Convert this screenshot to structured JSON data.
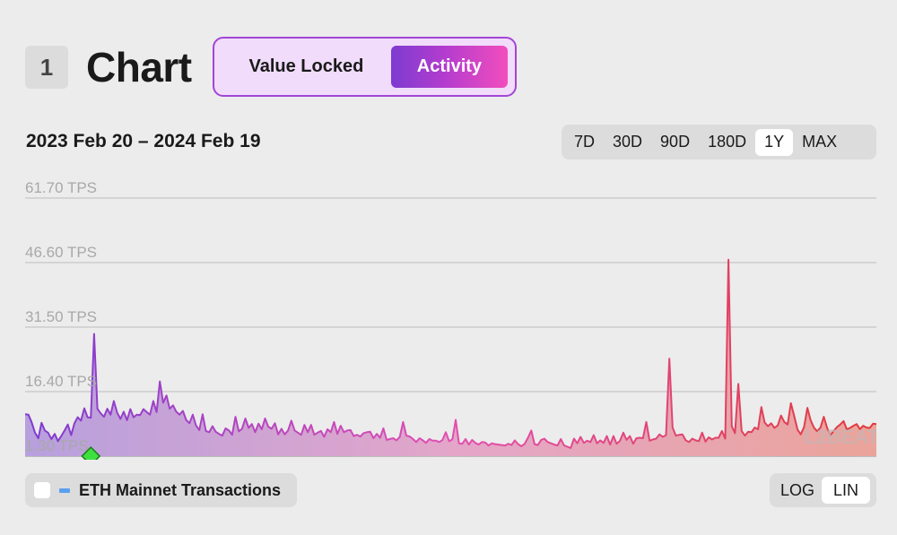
{
  "header": {
    "section_number": "1",
    "title": "Chart",
    "tabs": [
      {
        "label": "Value Locked",
        "active": false
      },
      {
        "label": "Activity",
        "active": true
      }
    ]
  },
  "date_range": "2023 Feb 20 – 2024 Feb 19",
  "range_buttons": [
    {
      "label": "7D",
      "selected": false
    },
    {
      "label": "30D",
      "selected": false
    },
    {
      "label": "90D",
      "selected": false
    },
    {
      "label": "180D",
      "selected": false
    },
    {
      "label": "1Y",
      "selected": true
    },
    {
      "label": "MAX",
      "selected": false
    }
  ],
  "legend": {
    "label": "ETH Mainnet Transactions",
    "checked": false,
    "swatch_color": "#5aa0f0"
  },
  "scale_buttons": [
    {
      "label": "LOG",
      "selected": false
    },
    {
      "label": "LIN",
      "selected": true
    }
  ],
  "watermark": "L2BEAT",
  "colors": {
    "gradient_start": "#7e3bd0",
    "gradient_mid": "#e24fb0",
    "gradient_end": "#e03a3a",
    "marker": "#3ee03e"
  },
  "chart_data": {
    "type": "area",
    "ylabel_unit": "TPS",
    "y_ticks": [
      "1.30 TPS",
      "16.40 TPS",
      "31.50 TPS",
      "46.60 TPS",
      "61.70 TPS"
    ],
    "ylim": [
      1.3,
      61.7
    ],
    "x_range": [
      "2023-02-20",
      "2024-02-19"
    ],
    "grid": true,
    "series": [
      {
        "values": [
          11.1,
          11.0,
          9.2,
          6.8,
          5.5,
          9.1,
          7.3,
          6.8,
          5.3,
          6.5,
          4.8,
          6.0,
          7.3,
          8.7,
          6.2,
          9.0,
          10.4,
          9.6,
          12.5,
          10.4,
          10.3,
          29.9,
          12.4,
          11.3,
          10.5,
          12.4,
          11.0,
          14.2,
          11.5,
          10.0,
          11.7,
          9.7,
          12.3,
          10.4,
          11.0,
          10.9,
          12.3,
          11.6,
          11.0,
          14.2,
          11.6,
          18.8,
          13.8,
          15.5,
          12.4,
          13.2,
          11.7,
          11.0,
          11.9,
          9.8,
          9.0,
          11.0,
          8.5,
          7.4,
          11.1,
          7.2,
          6.9,
          8.3,
          7.0,
          6.5,
          6.1,
          7.8,
          7.3,
          6.3,
          10.5,
          7.1,
          7.7,
          10.1,
          7.9,
          8.8,
          6.9,
          8.9,
          7.6,
          10.1,
          8.2,
          7.7,
          9.0,
          6.4,
          7.7,
          6.4,
          7.3,
          9.6,
          7.3,
          6.8,
          6.3,
          8.6,
          6.9,
          8.6,
          6.3,
          6.8,
          7.2,
          5.8,
          7.6,
          6.9,
          9.3,
          6.5,
          8.4,
          6.9,
          7.3,
          7.4,
          6.0,
          6.3,
          5.9,
          6.7,
          6.9,
          7.0,
          5.5,
          6.5,
          5.6,
          7.8,
          5.1,
          5.3,
          5.5,
          5.0,
          5.8,
          9.3,
          6.1,
          5.9,
          5.3,
          4.6,
          5.5,
          5.0,
          4.4,
          5.3,
          4.9,
          4.9,
          4.6,
          5.1,
          6.9,
          4.8,
          5.2,
          9.8,
          4.3,
          4.2,
          5.3,
          4.0,
          5.1,
          4.4,
          4.0,
          4.6,
          4.5,
          3.8,
          4.3,
          4.1,
          4.0,
          3.9,
          3.8,
          4.2,
          3.9,
          5.0,
          4.1,
          3.6,
          4.2,
          5.6,
          7.3,
          4.1,
          3.9,
          5.1,
          5.4,
          4.6,
          4.3,
          4.0,
          3.8,
          5.3,
          3.8,
          3.5,
          3.2,
          5.4,
          4.3,
          5.8,
          4.4,
          4.9,
          4.6,
          6.2,
          4.3,
          5.0,
          4.4,
          6.0,
          4.0,
          6.0,
          4.2,
          4.9,
          6.8,
          5.1,
          6.0,
          4.2,
          5.5,
          5.6,
          5.5,
          9.3,
          4.9,
          5.2,
          5.4,
          6.4,
          5.8,
          6.2,
          24.1,
          8.0,
          6.1,
          6.3,
          6.4,
          5.0,
          4.6,
          5.4,
          5.0,
          4.8,
          6.8,
          4.7,
          5.7,
          5.2,
          5.6,
          5.6,
          7.2,
          5.4,
          47.3,
          8.3,
          6.7,
          18.2,
          7.2,
          6.1,
          7.0,
          6.9,
          8.0,
          7.6,
          12.8,
          9.2,
          8.3,
          9.0,
          7.9,
          8.5,
          10.8,
          9.3,
          8.7,
          13.7,
          10.7,
          7.5,
          6.4,
          8.1,
          12.6,
          9.7,
          8.0,
          7.1,
          8.0,
          10.5,
          8.0,
          6.2,
          7.2,
          8.1,
          8.7,
          9.5,
          7.6,
          7.9,
          8.4,
          8.8,
          7.6,
          8.4,
          8.0,
          7.9,
          8.9,
          8.8
        ]
      }
    ],
    "markers": [
      {
        "x_index": 20
      }
    ]
  }
}
